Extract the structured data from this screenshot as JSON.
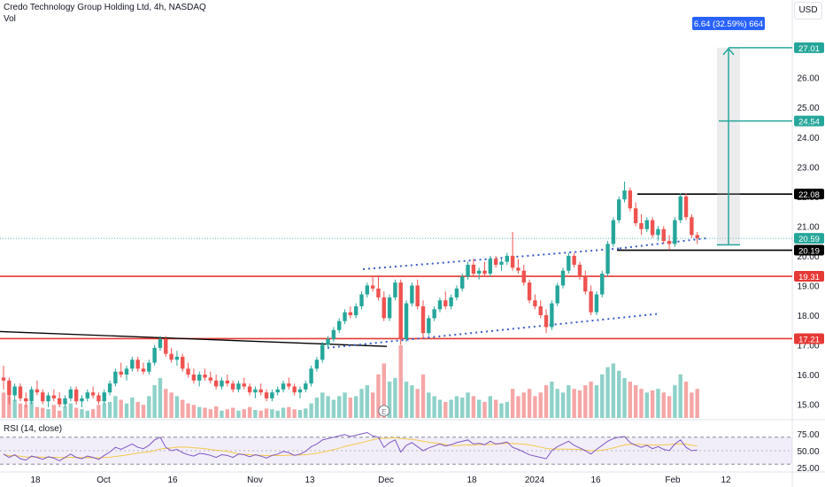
{
  "header": {
    "title": "Credo Technology Group Holding Ltd, 4h, NASDAQ",
    "volume_label": "Vol",
    "currency": "USD"
  },
  "rsi": {
    "label": "RSI (14, close)",
    "axis": [
      "75.00",
      "50.00",
      "25.00"
    ],
    "ylim": [
      25,
      75
    ]
  },
  "chart_data": {
    "type": "candlestick",
    "title": "Credo Technology Group Holding Ltd, 4h, NASDAQ",
    "ylim": [
      14.6,
      27.9
    ],
    "y_ticks": [
      15,
      16,
      17,
      18,
      19,
      20,
      21,
      22,
      23,
      24,
      25,
      26,
      27
    ],
    "x_labels": [
      "18",
      "Oct",
      "16",
      "Nov",
      "13",
      "Dec",
      "18",
      "2024",
      "16",
      "Feb",
      "12"
    ],
    "horizontal_levels": [
      {
        "price": 22.08,
        "label": "22.08",
        "color": "#000000"
      },
      {
        "price": 20.19,
        "label": "20.19",
        "color": "#000000"
      },
      {
        "price": 19.31,
        "label": "19.31",
        "color": "#e53935"
      },
      {
        "price": 17.21,
        "label": "17.21",
        "color": "#e53935"
      }
    ],
    "price_labels": [
      {
        "price": 27.01,
        "label": "27.01",
        "kind": "target"
      },
      {
        "price": 24.54,
        "label": "24.54",
        "kind": "target"
      },
      {
        "price": 20.59,
        "label": "20.59",
        "kind": "last"
      }
    ],
    "measure": {
      "from": 20.37,
      "to": 27.01,
      "label": "6.64 (32.59%) 664"
    },
    "events": [
      "E"
    ],
    "candles": [
      [
        15.9,
        16.3,
        15.5,
        15.8
      ],
      [
        15.8,
        15.9,
        15.0,
        15.3
      ],
      [
        15.3,
        15.7,
        15.1,
        15.6
      ],
      [
        15.6,
        15.7,
        15.1,
        15.2
      ],
      [
        15.2,
        15.4,
        14.9,
        15.1
      ],
      [
        15.1,
        15.6,
        15.0,
        15.5
      ],
      [
        15.5,
        15.8,
        15.3,
        15.4
      ],
      [
        15.4,
        15.5,
        15.0,
        15.1
      ],
      [
        15.1,
        15.4,
        14.9,
        15.3
      ],
      [
        15.3,
        15.5,
        15.1,
        15.2
      ],
      [
        15.2,
        15.4,
        14.9,
        15.0
      ],
      [
        15.0,
        15.3,
        14.9,
        15.2
      ],
      [
        15.2,
        15.6,
        15.1,
        15.5
      ],
      [
        15.5,
        15.6,
        15.0,
        15.1
      ],
      [
        15.1,
        15.3,
        14.9,
        15.2
      ],
      [
        15.2,
        15.5,
        15.1,
        15.4
      ],
      [
        15.4,
        15.6,
        15.2,
        15.3
      ],
      [
        15.3,
        15.4,
        15.0,
        15.1
      ],
      [
        15.1,
        15.5,
        15.0,
        15.4
      ],
      [
        15.4,
        15.8,
        15.3,
        15.7
      ],
      [
        15.7,
        16.2,
        15.6,
        16.1
      ],
      [
        16.1,
        16.4,
        15.9,
        16.0
      ],
      [
        16.0,
        16.3,
        15.8,
        16.2
      ],
      [
        16.2,
        16.6,
        16.1,
        16.5
      ],
      [
        16.5,
        16.6,
        16.1,
        16.2
      ],
      [
        16.2,
        16.4,
        16.0,
        16.1
      ],
      [
        16.1,
        16.5,
        16.0,
        16.4
      ],
      [
        16.4,
        17.0,
        16.3,
        16.9
      ],
      [
        16.9,
        17.3,
        16.8,
        17.2
      ],
      [
        17.2,
        17.3,
        16.6,
        16.7
      ],
      [
        16.7,
        16.9,
        16.4,
        16.5
      ],
      [
        16.5,
        16.8,
        16.3,
        16.6
      ],
      [
        16.6,
        16.7,
        16.1,
        16.2
      ],
      [
        16.2,
        16.4,
        15.9,
        16.0
      ],
      [
        16.0,
        16.2,
        15.7,
        15.8
      ],
      [
        15.8,
        16.1,
        15.6,
        16.0
      ],
      [
        16.0,
        16.2,
        15.8,
        15.9
      ],
      [
        15.9,
        16.1,
        15.7,
        15.8
      ],
      [
        15.8,
        16.0,
        15.5,
        15.6
      ],
      [
        15.6,
        15.9,
        15.5,
        15.8
      ],
      [
        15.8,
        16.0,
        15.6,
        15.7
      ],
      [
        15.7,
        15.8,
        15.4,
        15.5
      ],
      [
        15.5,
        15.8,
        15.4,
        15.7
      ],
      [
        15.7,
        15.9,
        15.5,
        15.6
      ],
      [
        15.6,
        15.7,
        15.3,
        15.4
      ],
      [
        15.4,
        15.6,
        15.2,
        15.5
      ],
      [
        15.5,
        15.7,
        15.3,
        15.4
      ],
      [
        15.4,
        15.5,
        15.1,
        15.2
      ],
      [
        15.2,
        15.5,
        15.1,
        15.4
      ],
      [
        15.4,
        15.6,
        15.3,
        15.5
      ],
      [
        15.5,
        15.8,
        15.4,
        15.7
      ],
      [
        15.7,
        15.9,
        15.5,
        15.6
      ],
      [
        15.6,
        15.7,
        15.3,
        15.4
      ],
      [
        15.4,
        15.6,
        15.2,
        15.5
      ],
      [
        15.5,
        15.8,
        15.4,
        15.7
      ],
      [
        15.7,
        16.3,
        15.6,
        16.2
      ],
      [
        16.2,
        16.6,
        16.1,
        16.5
      ],
      [
        16.5,
        17.1,
        16.4,
        17.0
      ],
      [
        17.0,
        17.3,
        16.9,
        17.2
      ],
      [
        17.2,
        17.6,
        17.1,
        17.5
      ],
      [
        17.5,
        17.9,
        17.4,
        17.8
      ],
      [
        17.8,
        18.2,
        17.7,
        18.1
      ],
      [
        18.1,
        18.3,
        17.9,
        18.0
      ],
      [
        18.0,
        18.4,
        17.9,
        18.3
      ],
      [
        18.3,
        18.8,
        18.2,
        18.7
      ],
      [
        18.7,
        19.1,
        18.6,
        19.0
      ],
      [
        19.0,
        19.3,
        18.8,
        18.9
      ],
      [
        18.9,
        19.3,
        18.5,
        18.6
      ],
      [
        18.6,
        18.8,
        17.8,
        17.9
      ],
      [
        17.9,
        18.7,
        17.8,
        18.6
      ],
      [
        18.6,
        19.2,
        18.5,
        19.1
      ],
      [
        19.1,
        19.2,
        17.0,
        17.2
      ],
      [
        17.2,
        18.5,
        17.1,
        18.4
      ],
      [
        18.4,
        19.1,
        18.3,
        19.0
      ],
      [
        19.0,
        19.2,
        18.2,
        18.3
      ],
      [
        18.3,
        18.5,
        17.2,
        17.4
      ],
      [
        17.4,
        18.0,
        17.3,
        17.9
      ],
      [
        17.9,
        18.3,
        17.8,
        18.2
      ],
      [
        18.2,
        18.6,
        18.1,
        18.5
      ],
      [
        18.5,
        18.8,
        18.2,
        18.3
      ],
      [
        18.3,
        18.7,
        18.2,
        18.6
      ],
      [
        18.6,
        19.0,
        18.5,
        18.9
      ],
      [
        18.9,
        19.4,
        18.8,
        19.3
      ],
      [
        19.3,
        19.8,
        19.2,
        19.7
      ],
      [
        19.7,
        19.9,
        19.3,
        19.4
      ],
      [
        19.4,
        19.6,
        19.2,
        19.5
      ],
      [
        19.5,
        19.8,
        19.3,
        19.4
      ],
      [
        19.4,
        20.0,
        19.3,
        19.9
      ],
      [
        19.9,
        20.0,
        19.6,
        19.7
      ],
      [
        19.7,
        19.9,
        19.5,
        19.8
      ],
      [
        19.8,
        20.1,
        19.7,
        20.0
      ],
      [
        20.0,
        20.8,
        19.5,
        19.6
      ],
      [
        19.6,
        19.9,
        19.4,
        19.5
      ],
      [
        19.5,
        19.7,
        19.0,
        19.1
      ],
      [
        19.1,
        19.2,
        18.4,
        18.5
      ],
      [
        18.5,
        18.7,
        18.2,
        18.3
      ],
      [
        18.3,
        18.5,
        17.9,
        18.0
      ],
      [
        18.0,
        18.2,
        17.4,
        17.6
      ],
      [
        17.6,
        18.5,
        17.5,
        18.4
      ],
      [
        18.4,
        19.1,
        18.3,
        19.0
      ],
      [
        19.0,
        19.6,
        18.9,
        19.5
      ],
      [
        19.5,
        20.1,
        19.4,
        20.0
      ],
      [
        20.0,
        20.1,
        19.6,
        19.7
      ],
      [
        19.7,
        19.8,
        19.2,
        19.3
      ],
      [
        19.3,
        19.5,
        18.7,
        18.8
      ],
      [
        18.8,
        19.0,
        18.0,
        18.1
      ],
      [
        18.1,
        18.8,
        18.0,
        18.7
      ],
      [
        18.7,
        19.5,
        18.6,
        19.4
      ],
      [
        19.4,
        20.5,
        19.3,
        20.4
      ],
      [
        20.4,
        21.3,
        20.3,
        21.2
      ],
      [
        21.2,
        22.0,
        21.1,
        21.9
      ],
      [
        21.9,
        22.5,
        21.8,
        22.2
      ],
      [
        22.2,
        22.3,
        21.5,
        21.6
      ],
      [
        21.6,
        21.8,
        21.0,
        21.1
      ],
      [
        21.1,
        21.4,
        20.7,
        20.9
      ],
      [
        20.9,
        21.3,
        20.8,
        21.2
      ],
      [
        21.2,
        21.3,
        20.6,
        20.7
      ],
      [
        20.7,
        21.0,
        20.5,
        20.9
      ],
      [
        20.9,
        21.0,
        20.4,
        20.5
      ],
      [
        20.5,
        20.7,
        20.2,
        20.4
      ],
      [
        20.4,
        21.3,
        20.3,
        21.2
      ],
      [
        21.2,
        22.1,
        21.1,
        22.0
      ],
      [
        22.0,
        22.1,
        21.2,
        21.3
      ],
      [
        21.3,
        21.4,
        20.6,
        20.7
      ],
      [
        20.7,
        20.8,
        20.4,
        20.59
      ]
    ],
    "volumes": [
      0.35,
      0.3,
      0.25,
      0.2,
      0.18,
      0.22,
      0.15,
      0.14,
      0.12,
      0.18,
      0.1,
      0.16,
      0.2,
      0.14,
      0.12,
      0.1,
      0.12,
      0.18,
      0.2,
      0.22,
      0.3,
      0.25,
      0.2,
      0.28,
      0.22,
      0.18,
      0.3,
      0.45,
      0.55,
      0.4,
      0.35,
      0.3,
      0.25,
      0.2,
      0.18,
      0.15,
      0.14,
      0.12,
      0.16,
      0.1,
      0.12,
      0.14,
      0.1,
      0.12,
      0.15,
      0.11,
      0.1,
      0.13,
      0.12,
      0.1,
      0.14,
      0.15,
      0.12,
      0.11,
      0.13,
      0.2,
      0.28,
      0.35,
      0.3,
      0.25,
      0.3,
      0.35,
      0.28,
      0.3,
      0.4,
      0.45,
      0.35,
      0.6,
      0.75,
      0.5,
      0.55,
      1.0,
      0.5,
      0.45,
      0.4,
      0.6,
      0.35,
      0.3,
      0.25,
      0.22,
      0.25,
      0.3,
      0.28,
      0.35,
      0.3,
      0.25,
      0.22,
      0.3,
      0.25,
      0.2,
      0.22,
      0.4,
      0.3,
      0.35,
      0.4,
      0.3,
      0.35,
      0.45,
      0.5,
      0.4,
      0.35,
      0.45,
      0.4,
      0.38,
      0.45,
      0.5,
      0.45,
      0.6,
      0.7,
      0.75,
      0.65,
      0.55,
      0.5,
      0.45,
      0.4,
      0.35,
      0.38,
      0.4,
      0.35,
      0.3,
      0.45,
      0.6,
      0.5,
      0.35,
      0.4
    ],
    "rsi_values": [
      45,
      40,
      44,
      38,
      36,
      42,
      40,
      37,
      41,
      39,
      35,
      40,
      45,
      40,
      38,
      42,
      40,
      37,
      43,
      48,
      55,
      52,
      56,
      60,
      55,
      53,
      58,
      66,
      70,
      55,
      50,
      52,
      47,
      44,
      42,
      46,
      45,
      43,
      40,
      44,
      43,
      40,
      45,
      44,
      41,
      44,
      42,
      39,
      43,
      45,
      49,
      47,
      43,
      45,
      49,
      56,
      60,
      66,
      68,
      70,
      72,
      74,
      71,
      73,
      75,
      77,
      72,
      70,
      55,
      62,
      66,
      48,
      58,
      62,
      56,
      50,
      54,
      57,
      60,
      57,
      59,
      62,
      64,
      66,
      60,
      61,
      59,
      64,
      60,
      61,
      63,
      55,
      52,
      48,
      44,
      42,
      40,
      38,
      50,
      56,
      60,
      64,
      58,
      54,
      50,
      45,
      52,
      58,
      64,
      68,
      70,
      71,
      62,
      58,
      55,
      58,
      53,
      56,
      52,
      50,
      60,
      66,
      55,
      50,
      51
    ]
  }
}
